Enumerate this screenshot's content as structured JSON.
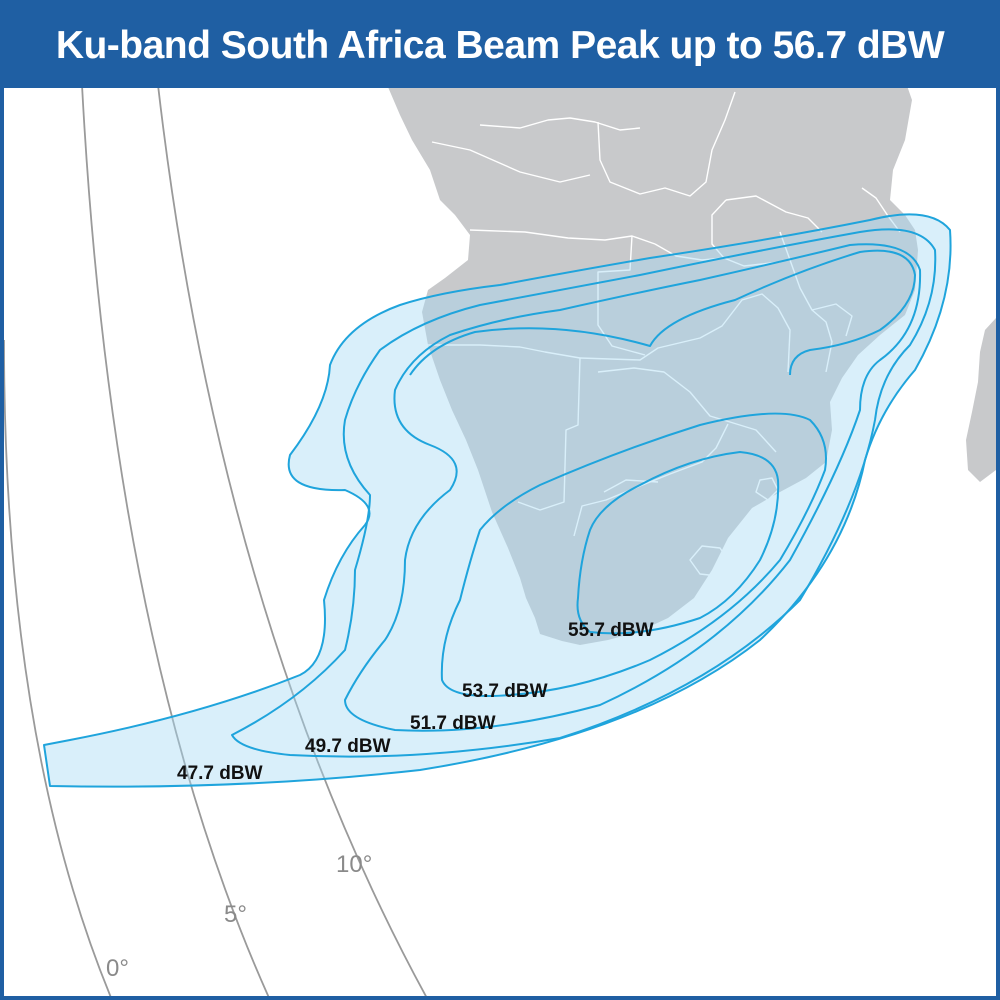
{
  "title": "Ku-band South Africa Beam Peak up to 56.7 dBW",
  "contours": [
    {
      "label": "47.7 dBW"
    },
    {
      "label": "49.7 dBW"
    },
    {
      "label": "51.7 dBW"
    },
    {
      "label": "53.7 dBW"
    },
    {
      "label": "55.7 dBW"
    }
  ],
  "elevation_arcs": [
    {
      "label": "0°"
    },
    {
      "label": "5°"
    },
    {
      "label": "10°"
    }
  ],
  "colors": {
    "header": "#1f5fa3",
    "land": "#c8c9cb",
    "beam_fill": "#d6eef9",
    "contour_line": "#1fa4dc",
    "border_line": "#ffffff",
    "elevation_arc": "#9a9a9a"
  }
}
